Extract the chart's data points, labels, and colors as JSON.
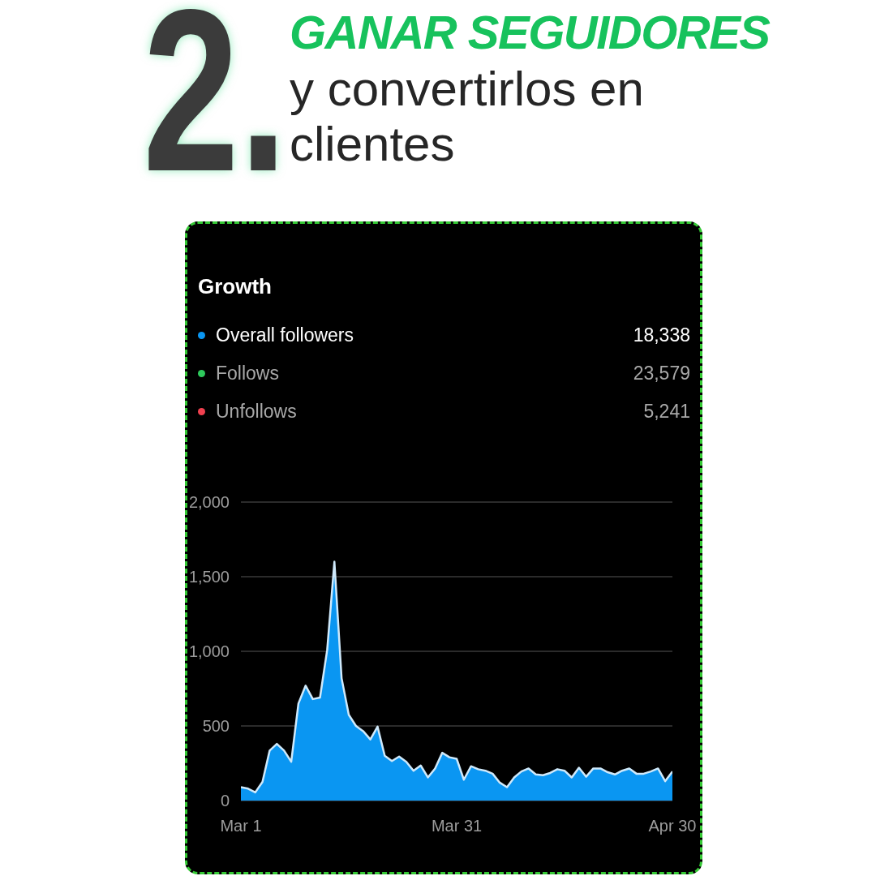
{
  "chart_data": {
    "type": "area",
    "title": "GANAR SEGUIDORES",
    "subtitle": "y convertirlos en clientes",
    "legend_title": "Growth",
    "annotations": [
      "2.",
      "18,338",
      "23,579",
      "5,241"
    ],
    "x": [
      "--03-01",
      "--03-02",
      "--03-03",
      "--03-04",
      "--03-05",
      "--03-06",
      "--03-07",
      "--03-08",
      "--03-09",
      "--03-10",
      "--03-11",
      "--03-12",
      "--03-13",
      "--03-14",
      "--03-15",
      "--03-16",
      "--03-17",
      "--03-18",
      "--03-19",
      "--03-20",
      "--03-21",
      "--03-22",
      "--03-23",
      "--03-24",
      "--03-25",
      "--03-26",
      "--03-27",
      "--03-28",
      "--03-29",
      "--03-30",
      "--03-31",
      "--04-01",
      "--04-02",
      "--04-03",
      "--04-04",
      "--04-05",
      "--04-06",
      "--04-07",
      "--04-08",
      "--04-09",
      "--04-10",
      "--04-11",
      "--04-12",
      "--04-13",
      "--04-14",
      "--04-15",
      "--04-16",
      "--04-17",
      "--04-18",
      "--04-19",
      "--04-20",
      "--04-21",
      "--04-22",
      "--04-23",
      "--04-24",
      "--04-25",
      "--04-26",
      "--04-27",
      "--04-28",
      "--04-29",
      "--04-30"
    ],
    "series": [
      {
        "name": "Overall followers",
        "color": "#0a96f2",
        "values": [
          90,
          80,
          55,
          125,
          335,
          380,
          335,
          260,
          650,
          770,
          680,
          690,
          1010,
          1600,
          820,
          575,
          500,
          465,
          410,
          495,
          300,
          265,
          295,
          260,
          200,
          235,
          155,
          215,
          320,
          290,
          280,
          140,
          230,
          210,
          200,
          180,
          120,
          90,
          155,
          195,
          215,
          175,
          170,
          185,
          210,
          200,
          155,
          220,
          160,
          215,
          215,
          190,
          175,
          200,
          215,
          180,
          180,
          195,
          215,
          130,
          195
        ]
      },
      {
        "name": "Follows",
        "color": "#2ec95c",
        "values": [
          null,
          null,
          null,
          null,
          null,
          null,
          null,
          null,
          null,
          null,
          null,
          null,
          null,
          null,
          null,
          null,
          null,
          null,
          null,
          null,
          null,
          null,
          null,
          null,
          null,
          null,
          null,
          null,
          null,
          null,
          null,
          null,
          null,
          null,
          null,
          null,
          null,
          null,
          null,
          null,
          null,
          null,
          null,
          null,
          null,
          null,
          null,
          null,
          null,
          null,
          null,
          null,
          null,
          null,
          null,
          null,
          null,
          null,
          null,
          null,
          null
        ]
      },
      {
        "name": "Unfollows",
        "color": "#f0404f",
        "values": [
          null,
          null,
          null,
          null,
          null,
          null,
          null,
          null,
          null,
          null,
          null,
          null,
          null,
          null,
          null,
          null,
          null,
          null,
          null,
          null,
          null,
          null,
          null,
          null,
          null,
          null,
          null,
          null,
          null,
          null,
          null,
          null,
          null,
          null,
          null,
          null,
          null,
          null,
          null,
          null,
          null,
          null,
          null,
          null,
          null,
          null,
          null,
          null,
          null,
          null,
          null,
          null,
          null,
          null,
          null,
          null,
          null,
          null,
          null,
          null,
          null
        ]
      }
    ],
    "xlim": [
      "--03-01",
      "--04-30"
    ],
    "xticks": [
      {
        "value": "--03-01",
        "label": "Mar 1"
      },
      {
        "value": "--03-31",
        "label": "Mar 31"
      },
      {
        "value": "--04-30",
        "label": "Apr 30"
      }
    ],
    "ylim": [
      0,
      2000
    ],
    "yticks": [
      0,
      500,
      {
        "value": 1000,
        "label": "1,000"
      },
      {
        "value": 1500,
        "label": "1,500"
      },
      {
        "value": 2000,
        "label": "2,000"
      }
    ],
    "grid": "y",
    "legend": "top"
  }
}
